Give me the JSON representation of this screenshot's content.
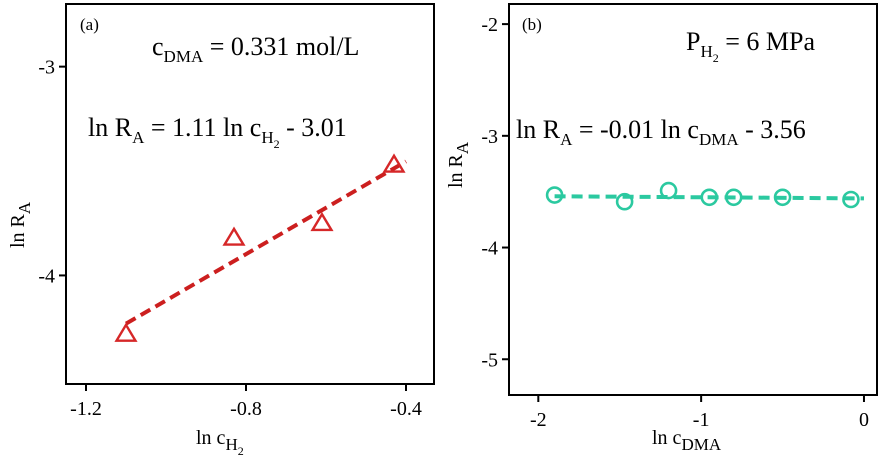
{
  "chart_data": [
    {
      "type": "scatter",
      "panel_label": "(a)",
      "annotation_top": {
        "base": "c",
        "sub": "DMA",
        "rest": " = 0.331 mol/L"
      },
      "equation": {
        "pre": "ln R",
        "sub1": "A",
        "mid": " = 1.11 ln c",
        "sub2": "H",
        "sub3": "2",
        "post": " - 3.01"
      },
      "xlabel": {
        "base": "ln c",
        "sub": "H",
        "subsub": "2"
      },
      "ylabel": {
        "base": "ln R",
        "sub": "A"
      },
      "xlim": [
        -1.25,
        -0.33
      ],
      "ylim": [
        -4.52,
        -2.7
      ],
      "xticks": [
        -1.2,
        -0.8,
        -0.4
      ],
      "xtick_labels": [
        "-1.2",
        "-0.8",
        "-0.4"
      ],
      "yticks": [
        -4,
        -3
      ],
      "ytick_labels": [
        "-4",
        "-3"
      ],
      "series": [
        {
          "marker": "triangle",
          "color": "#d62728",
          "x": [
            -1.1,
            -0.83,
            -0.61,
            -0.43
          ],
          "y": [
            -4.28,
            -3.82,
            -3.75,
            -3.47
          ]
        }
      ],
      "fit": {
        "slope": 1.11,
        "intercept": -3.01,
        "x_range": [
          -1.1,
          -0.4
        ],
        "color": "#cc1f1f"
      }
    },
    {
      "type": "scatter",
      "panel_label": "(b)",
      "annotation_top": {
        "base": "P",
        "sub": "H",
        "subsub": "2",
        "rest": " = 6 MPa"
      },
      "equation": {
        "pre": "ln R",
        "sub1": "A",
        "mid": " = -0.01 ln c",
        "sub2": "DMA",
        "post": " - 3.56"
      },
      "xlabel": {
        "base": "ln c",
        "sub": "DMA"
      },
      "ylabel": {
        "base": "ln R",
        "sub": "A"
      },
      "xlim": [
        -2.18,
        0.08
      ],
      "ylim": [
        -5.32,
        -1.82
      ],
      "xticks": [
        -2,
        -1,
        0
      ],
      "xtick_labels": [
        "-2",
        "-1",
        "0"
      ],
      "yticks": [
        -5,
        -4,
        -3,
        -2
      ],
      "ytick_labels": [
        "-5",
        "-4",
        "-3",
        "-2"
      ],
      "series": [
        {
          "marker": "circle",
          "color": "#2bc9a0",
          "x": [
            -1.9,
            -1.47,
            -1.2,
            -0.95,
            -0.8,
            -0.5,
            -0.08
          ],
          "y": [
            -3.53,
            -3.59,
            -3.49,
            -3.55,
            -3.55,
            -3.55,
            -3.57
          ]
        }
      ],
      "fit": {
        "slope": -0.01,
        "intercept": -3.56,
        "x_range": [
          -1.9,
          0.0
        ],
        "color": "#2bc9a0"
      }
    }
  ]
}
